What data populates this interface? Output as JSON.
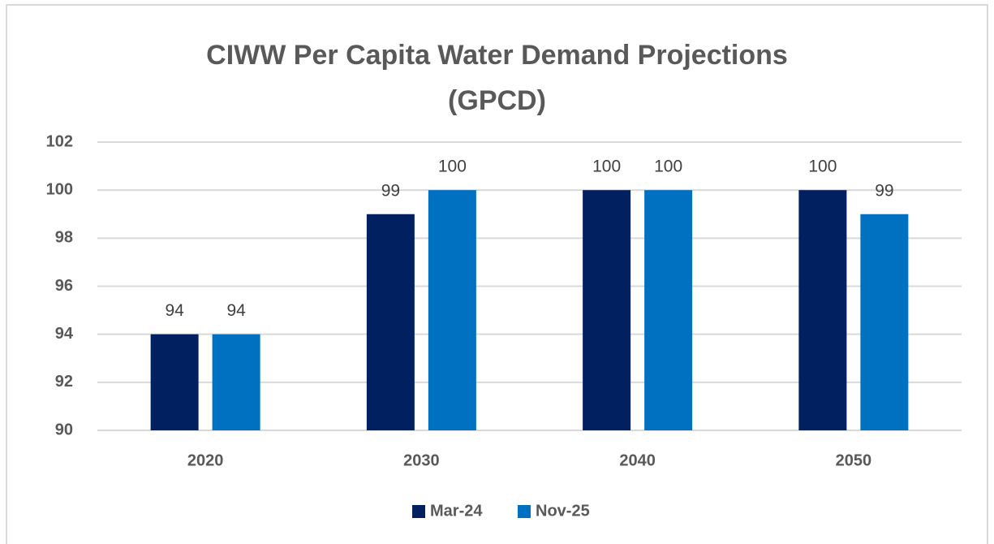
{
  "chart_data": {
    "type": "bar",
    "title": "CIWW Per Capita Water Demand Projections (GPCD)",
    "categories": [
      "2020",
      "2030",
      "2040",
      "2050"
    ],
    "series": [
      {
        "name": "Mar-24",
        "color": "#002060",
        "values": [
          94,
          99,
          100,
          100
        ]
      },
      {
        "name": "Nov-25",
        "color": "#0070c0",
        "values": [
          94,
          100,
          100,
          99
        ]
      }
    ],
    "ylim": [
      90,
      102
    ],
    "yticks": [
      90,
      92,
      94,
      96,
      98,
      100,
      102
    ],
    "grid": true,
    "legend": "bottom"
  }
}
